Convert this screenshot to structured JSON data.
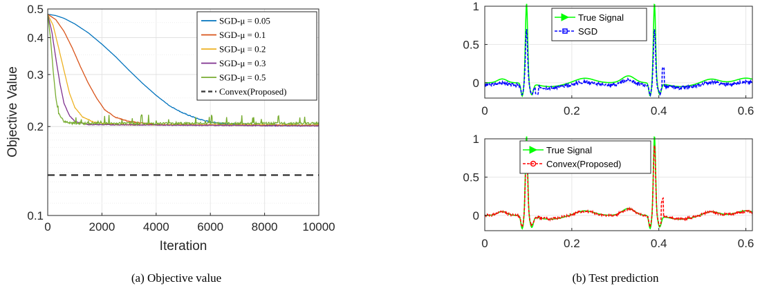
{
  "chart_data": [
    {
      "type": "line",
      "caption": "(a) Objective value",
      "xlabel": "Iteration",
      "ylabel": "Objective Value",
      "xlim": [
        0,
        10000
      ],
      "ylim": [
        0.1,
        0.5
      ],
      "yscale": "log",
      "grid": true,
      "legend_position": "top-right",
      "x_ticks": [
        "0",
        "2000",
        "4000",
        "6000",
        "8000",
        "10000"
      ],
      "y_ticks": [
        "0.1",
        "0.2",
        "0.3",
        "0.4",
        "0.5"
      ],
      "series": [
        {
          "name": "SGD-μ = 0.05",
          "color": "#0072BD",
          "style": "solid",
          "points": [
            [
              0,
              0.48
            ],
            [
              300,
              0.475
            ],
            [
              600,
              0.465
            ],
            [
              1000,
              0.445
            ],
            [
              1500,
              0.415
            ],
            [
              2000,
              0.38
            ],
            [
              2500,
              0.345
            ],
            [
              3000,
              0.31
            ],
            [
              3500,
              0.28
            ],
            [
              4000,
              0.255
            ],
            [
              4500,
              0.235
            ],
            [
              5000,
              0.222
            ],
            [
              5500,
              0.213
            ],
            [
              6000,
              0.207
            ],
            [
              7000,
              0.203
            ],
            [
              8000,
              0.202
            ],
            [
              10000,
              0.202
            ]
          ]
        },
        {
          "name": "SGD-μ = 0.1",
          "color": "#D95319",
          "style": "solid",
          "points": [
            [
              0,
              0.48
            ],
            [
              300,
              0.46
            ],
            [
              600,
              0.42
            ],
            [
              900,
              0.37
            ],
            [
              1200,
              0.32
            ],
            [
              1500,
              0.28
            ],
            [
              1800,
              0.25
            ],
            [
              2100,
              0.228
            ],
            [
              2500,
              0.215
            ],
            [
              3000,
              0.208
            ],
            [
              4000,
              0.203
            ],
            [
              10000,
              0.202
            ]
          ]
        },
        {
          "name": "SGD-μ = 0.2",
          "color": "#EDB120",
          "style": "solid",
          "points": [
            [
              0,
              0.48
            ],
            [
              200,
              0.44
            ],
            [
              400,
              0.37
            ],
            [
              600,
              0.31
            ],
            [
              800,
              0.26
            ],
            [
              1000,
              0.232
            ],
            [
              1300,
              0.215
            ],
            [
              1700,
              0.207
            ],
            [
              2500,
              0.203
            ],
            [
              10000,
              0.202
            ]
          ]
        },
        {
          "name": "SGD-μ = 0.3",
          "color": "#7E2F8E",
          "style": "solid",
          "points": [
            [
              0,
              0.48
            ],
            [
              150,
              0.42
            ],
            [
              300,
              0.34
            ],
            [
              450,
              0.28
            ],
            [
              600,
              0.24
            ],
            [
              800,
              0.218
            ],
            [
              1000,
              0.208
            ],
            [
              1500,
              0.203
            ],
            [
              10000,
              0.201
            ]
          ]
        },
        {
          "name": "SGD-μ = 0.5",
          "color": "#77AC30",
          "style": "solid",
          "points": [
            [
              0,
              0.48
            ],
            [
              100,
              0.4
            ],
            [
              200,
              0.31
            ],
            [
              300,
              0.25
            ],
            [
              400,
              0.222
            ],
            [
              600,
              0.208
            ],
            [
              900,
              0.205
            ],
            [
              10000,
              0.205
            ]
          ]
        },
        {
          "name": "Convex(Proposed)",
          "color": "#404040",
          "style": "dashed",
          "points": [
            [
              0,
              0.137
            ],
            [
              10000,
              0.137
            ]
          ]
        }
      ]
    },
    {
      "type": "line",
      "caption": "(b) Test prediction",
      "panels": [
        {
          "xlim": [
            0,
            0.6
          ],
          "ylim": [
            -0.2,
            1
          ],
          "x_ticks": [
            "0",
            "0.2",
            "0.4",
            "0.6"
          ],
          "y_ticks": [
            "0",
            "0.5",
            "1"
          ],
          "grid": true,
          "legend_position": "top-left",
          "series": [
            {
              "name": "True Signal",
              "color": "#00FF00",
              "marker": "triangle-right"
            },
            {
              "name": "SGD",
              "color": "#0000FF",
              "marker": "square",
              "style": "dashed"
            }
          ]
        },
        {
          "xlim": [
            0,
            0.6
          ],
          "ylim": [
            -0.2,
            1
          ],
          "x_ticks": [
            "0",
            "0.2",
            "0.4",
            "0.6"
          ],
          "y_ticks": [
            "0",
            "0.5",
            "1"
          ],
          "grid": true,
          "legend_position": "top-left",
          "series": [
            {
              "name": "True Signal",
              "color": "#00FF00",
              "marker": "triangle-right"
            },
            {
              "name": "Convex(Proposed)",
              "color": "#FF0000",
              "marker": "circle",
              "style": "dashed"
            }
          ]
        }
      ]
    }
  ]
}
